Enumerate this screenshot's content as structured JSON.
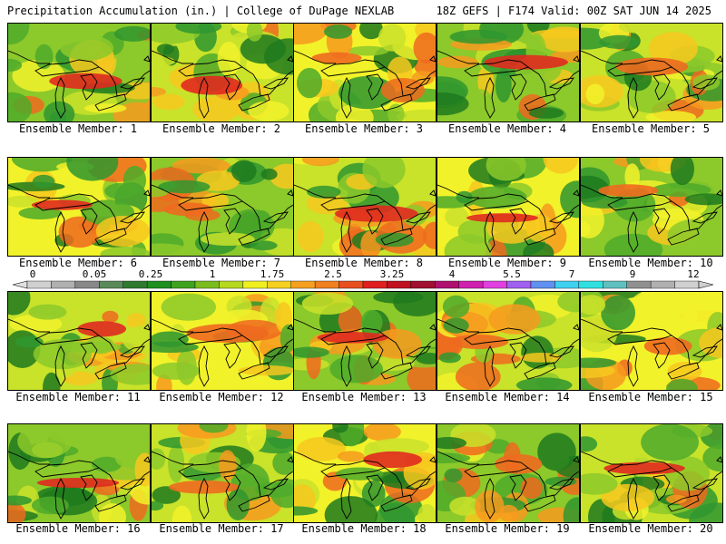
{
  "header": {
    "title_left": "Precipitation Accumulation (in.) | College of DuPage NEXLAB",
    "title_right": "18Z GEFS | F174 Valid: 00Z SAT JUN 14 2025"
  },
  "colorbar": {
    "tick_labels": [
      "0",
      "0.05",
      "0.25",
      "1",
      "1.75",
      "2.5",
      "3.25",
      "4",
      "5.5",
      "7",
      "9",
      "12"
    ],
    "colors": [
      "#d0d0d0",
      "#b0b0b0",
      "#888888",
      "#5a8a5a",
      "#2f7a2f",
      "#1f8f1f",
      "#3fa31f",
      "#7bbd1f",
      "#b6d81f",
      "#f0f020",
      "#f5d020",
      "#f5a020",
      "#f08020",
      "#e85020",
      "#e02020",
      "#c01020",
      "#a01030",
      "#b01070",
      "#d020b0",
      "#e040e0",
      "#a060f0",
      "#6090f0",
      "#40d0f0",
      "#30e0e0",
      "#60c0c0",
      "#909090",
      "#b0b0b0",
      "#d0d0d0"
    ]
  },
  "members": [
    {
      "label": "Ensemble Member: 1"
    },
    {
      "label": "Ensemble Member: 2"
    },
    {
      "label": "Ensemble Member: 3"
    },
    {
      "label": "Ensemble Member: 4"
    },
    {
      "label": "Ensemble Member: 5"
    },
    {
      "label": "Ensemble Member: 6"
    },
    {
      "label": "Ensemble Member: 7"
    },
    {
      "label": "Ensemble Member: 8"
    },
    {
      "label": "Ensemble Member: 9"
    },
    {
      "label": "Ensemble Member: 10"
    },
    {
      "label": "Ensemble Member: 11"
    },
    {
      "label": "Ensemble Member: 12"
    },
    {
      "label": "Ensemble Member: 13"
    },
    {
      "label": "Ensemble Member: 14"
    },
    {
      "label": "Ensemble Member: 15"
    },
    {
      "label": "Ensemble Member: 16"
    },
    {
      "label": "Ensemble Member: 17"
    },
    {
      "label": "Ensemble Member: 18"
    },
    {
      "label": "Ensemble Member: 19"
    },
    {
      "label": "Ensemble Member: 20"
    }
  ]
}
